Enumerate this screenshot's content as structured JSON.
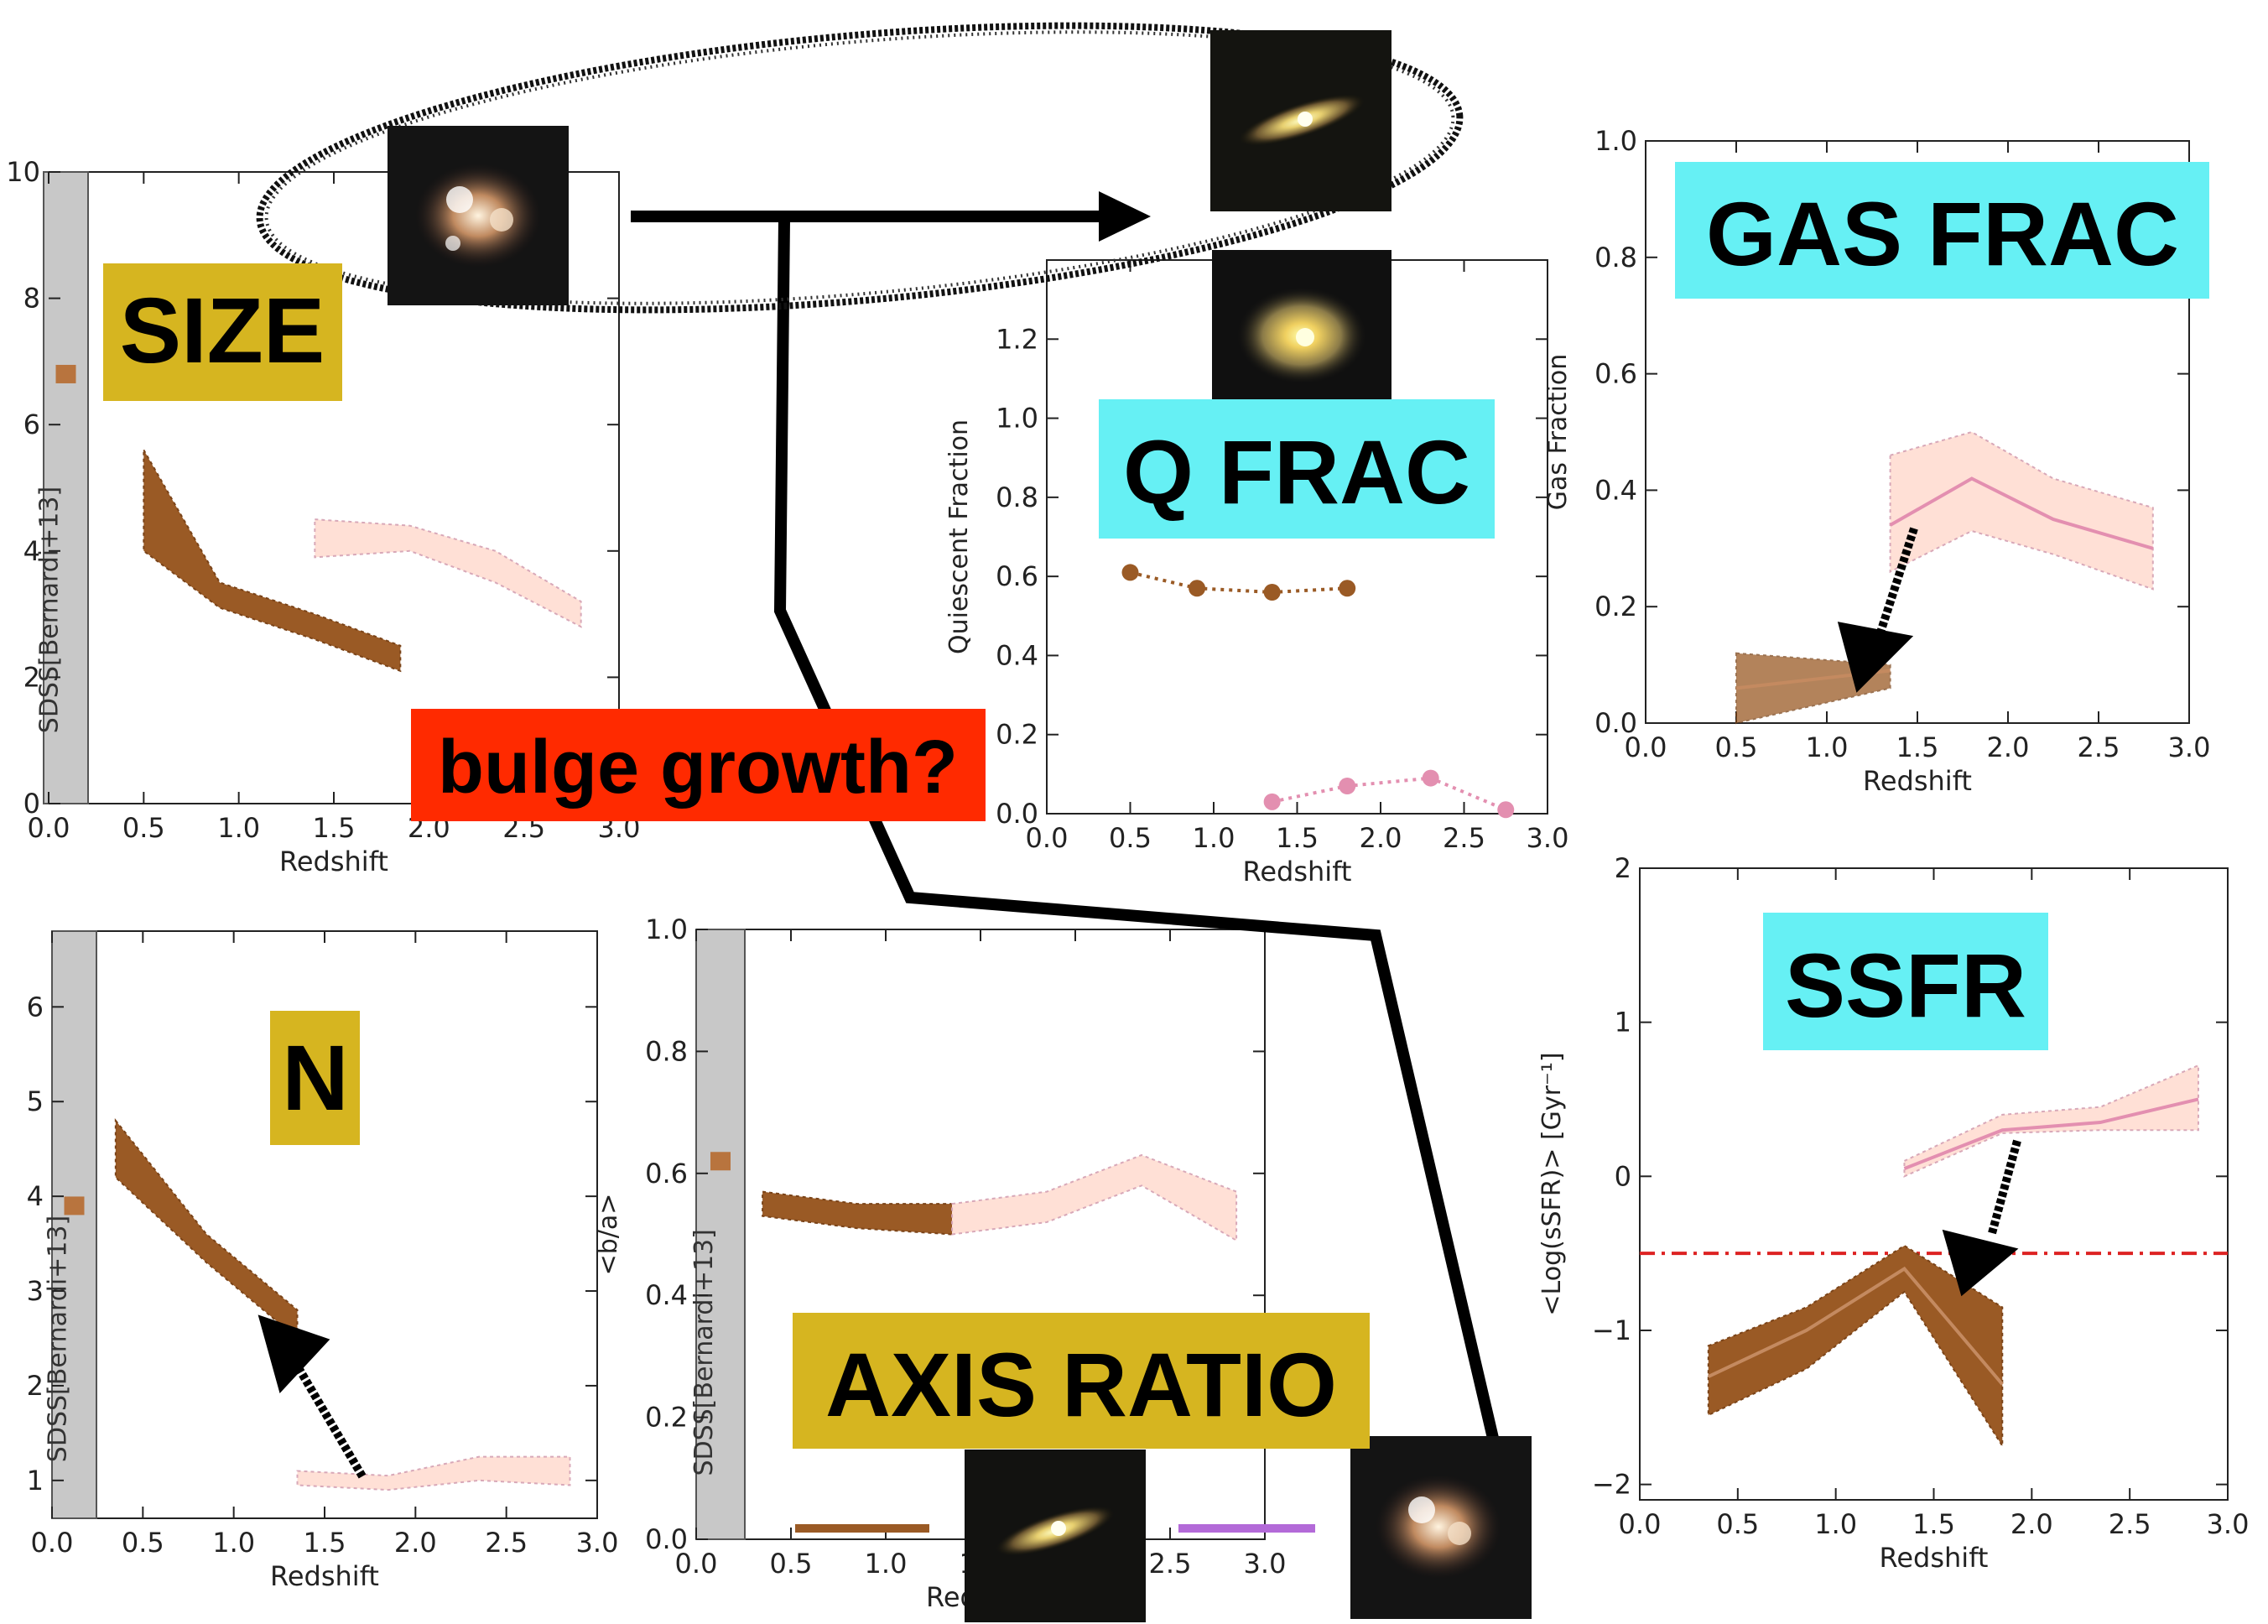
{
  "colors": {
    "brown": "#9a5a25",
    "pink_fill": "#ffe0d6",
    "pink_line": "#e38fb0",
    "yellow_label": "#d6b520",
    "cyan_label": "#66f0f4",
    "red_label": "#ff2a00",
    "sdss_band": "#c8c8c8",
    "threshold_red": "#dd2222",
    "purple": "#b36ad8"
  },
  "labels": {
    "size": "SIZE",
    "n": "N",
    "axis_ratio": "AXIS RATIO",
    "qfrac": "Q FRAC",
    "gasfrac": "GAS FRAC",
    "ssfr": "SSFR",
    "bulge": "bulge growth?"
  },
  "galaxy_icons": [
    "clumpy-galaxy",
    "edge-on-galaxy",
    "spiral-galaxy",
    "edge-on-galaxy",
    "clumpy-galaxy"
  ],
  "chart_data": [
    {
      "id": "size",
      "type": "area",
      "xlabel": "Redshift",
      "ylabel": "",
      "xlim": [
        0,
        3
      ],
      "ylim": [
        0,
        10
      ],
      "xticks": [
        "0.0",
        "0.5",
        "1.0",
        "1.5",
        "2.0",
        "2.5",
        "3.0"
      ],
      "yticks": [
        "0",
        "2",
        "4",
        "6",
        "8",
        "10"
      ],
      "sdss_label": "SDSS[Bernardi+13]",
      "sdss_value": 6.8,
      "series": [
        {
          "color": "brown",
          "x": [
            0.5,
            0.9,
            1.4,
            1.85
          ],
          "upper": [
            5.6,
            3.5,
            3.0,
            2.5
          ],
          "lower": [
            4.0,
            3.1,
            2.6,
            2.1
          ]
        },
        {
          "color": "pink",
          "x": [
            1.4,
            1.9,
            2.35,
            2.8
          ],
          "upper": [
            4.5,
            4.4,
            4.0,
            3.2
          ],
          "lower": [
            3.9,
            4.0,
            3.5,
            2.8
          ]
        }
      ]
    },
    {
      "id": "sersic_n",
      "type": "area",
      "xlabel": "Redshift",
      "ylabel": "n",
      "xlim": [
        0,
        3
      ],
      "ylim": [
        0.6,
        6.8
      ],
      "xticks": [
        "0.0",
        "0.5",
        "1.0",
        "1.5",
        "2.0",
        "2.5",
        "3.0"
      ],
      "yticks": [
        "1",
        "2",
        "3",
        "4",
        "5",
        "6"
      ],
      "sdss_label": "SDSS[Bernardi+13]",
      "sdss_value": 3.9,
      "series": [
        {
          "color": "brown",
          "x": [
            0.35,
            0.85,
            1.35
          ],
          "upper": [
            4.8,
            3.6,
            2.8
          ],
          "lower": [
            4.2,
            3.3,
            2.5
          ]
        },
        {
          "color": "pink",
          "x": [
            1.35,
            1.85,
            2.35,
            2.85
          ],
          "upper": [
            1.1,
            1.05,
            1.25,
            1.25
          ],
          "lower": [
            0.95,
            0.9,
            1.0,
            0.95
          ]
        }
      ]
    },
    {
      "id": "axis_ratio",
      "type": "area",
      "xlabel": "Redshift",
      "ylabel": "<b/a>",
      "xlim": [
        0,
        3
      ],
      "ylim": [
        0,
        1
      ],
      "xticks": [
        "0.0",
        "0.5",
        "1.0",
        "1.5",
        "2.0",
        "2.5",
        "3.0"
      ],
      "yticks": [
        "0.0",
        "0.2",
        "0.4",
        "0.6",
        "0.8",
        "1.0"
      ],
      "sdss_label": "SDSS[Bernardi+13]",
      "sdss_value": 0.62,
      "series": [
        {
          "color": "brown",
          "x": [
            0.35,
            0.85,
            1.35
          ],
          "upper": [
            0.57,
            0.55,
            0.55
          ],
          "lower": [
            0.53,
            0.51,
            0.5
          ]
        },
        {
          "color": "pink",
          "x": [
            1.35,
            1.85,
            2.35,
            2.85
          ],
          "upper": [
            0.55,
            0.57,
            0.63,
            0.57
          ],
          "lower": [
            0.5,
            0.52,
            0.58,
            0.49
          ]
        }
      ]
    },
    {
      "id": "quiescent_fraction",
      "type": "line",
      "xlabel": "Redshift",
      "ylabel": "Quiescent Fraction",
      "xlim": [
        0,
        3
      ],
      "ylim": [
        0,
        1.4
      ],
      "xticks": [
        "0.0",
        "0.5",
        "1.0",
        "1.5",
        "2.0",
        "2.5",
        "3.0"
      ],
      "yticks": [
        "0.0",
        "0.2",
        "0.4",
        "0.6",
        "0.8",
        "1.0",
        "1.2"
      ],
      "series": [
        {
          "color": "brown",
          "x": [
            0.5,
            0.9,
            1.35,
            1.8
          ],
          "y": [
            0.61,
            0.57,
            0.56,
            0.57
          ]
        },
        {
          "color": "pink",
          "x": [
            1.35,
            1.8,
            2.3,
            2.75
          ],
          "y": [
            0.03,
            0.07,
            0.09,
            0.01
          ]
        }
      ]
    },
    {
      "id": "gas_fraction",
      "type": "area",
      "xlabel": "Redshift",
      "ylabel": "Gas Fraction",
      "xlim": [
        0,
        3
      ],
      "ylim": [
        0,
        1
      ],
      "xticks": [
        "0.0",
        "0.5",
        "1.0",
        "1.5",
        "2.0",
        "2.5",
        "3.0"
      ],
      "yticks": [
        "0.0",
        "0.2",
        "0.4",
        "0.6",
        "0.8",
        "1.0"
      ],
      "series": [
        {
          "color": "brown",
          "x": [
            0.5,
            1.35
          ],
          "y": [
            0.06,
            0.09
          ],
          "upper": [
            0.12,
            0.1
          ],
          "lower": [
            0.0,
            0.06
          ]
        },
        {
          "color": "pink",
          "x": [
            1.35,
            1.8,
            2.25,
            2.8
          ],
          "y": [
            0.34,
            0.42,
            0.35,
            0.3
          ],
          "upper": [
            0.46,
            0.5,
            0.42,
            0.37
          ],
          "lower": [
            0.26,
            0.33,
            0.29,
            0.23
          ]
        }
      ]
    },
    {
      "id": "ssfr",
      "type": "area",
      "xlabel": "Redshift",
      "ylabel": "<Log(sSFR)> [Gyr⁻¹]",
      "xlim": [
        0,
        3
      ],
      "ylim": [
        -2.1,
        2
      ],
      "xticks": [
        "0.0",
        "0.5",
        "1.0",
        "1.5",
        "2.0",
        "2.5",
        "3.0"
      ],
      "yticks": [
        "−2",
        "−1",
        "0",
        "1",
        "2"
      ],
      "threshold": -0.5,
      "series": [
        {
          "color": "brown",
          "x": [
            0.35,
            0.85,
            1.35,
            1.85
          ],
          "y": [
            -1.3,
            -1.0,
            -0.6,
            -1.35
          ],
          "upper": [
            -1.1,
            -0.85,
            -0.45,
            -0.85
          ],
          "lower": [
            -1.55,
            -1.25,
            -0.75,
            -1.75
          ]
        },
        {
          "color": "pink",
          "x": [
            1.35,
            1.85,
            2.35,
            2.85
          ],
          "y": [
            0.05,
            0.3,
            0.35,
            0.5
          ],
          "upper": [
            0.1,
            0.4,
            0.45,
            0.72
          ],
          "lower": [
            0.0,
            0.28,
            0.3,
            0.3
          ]
        }
      ]
    }
  ]
}
